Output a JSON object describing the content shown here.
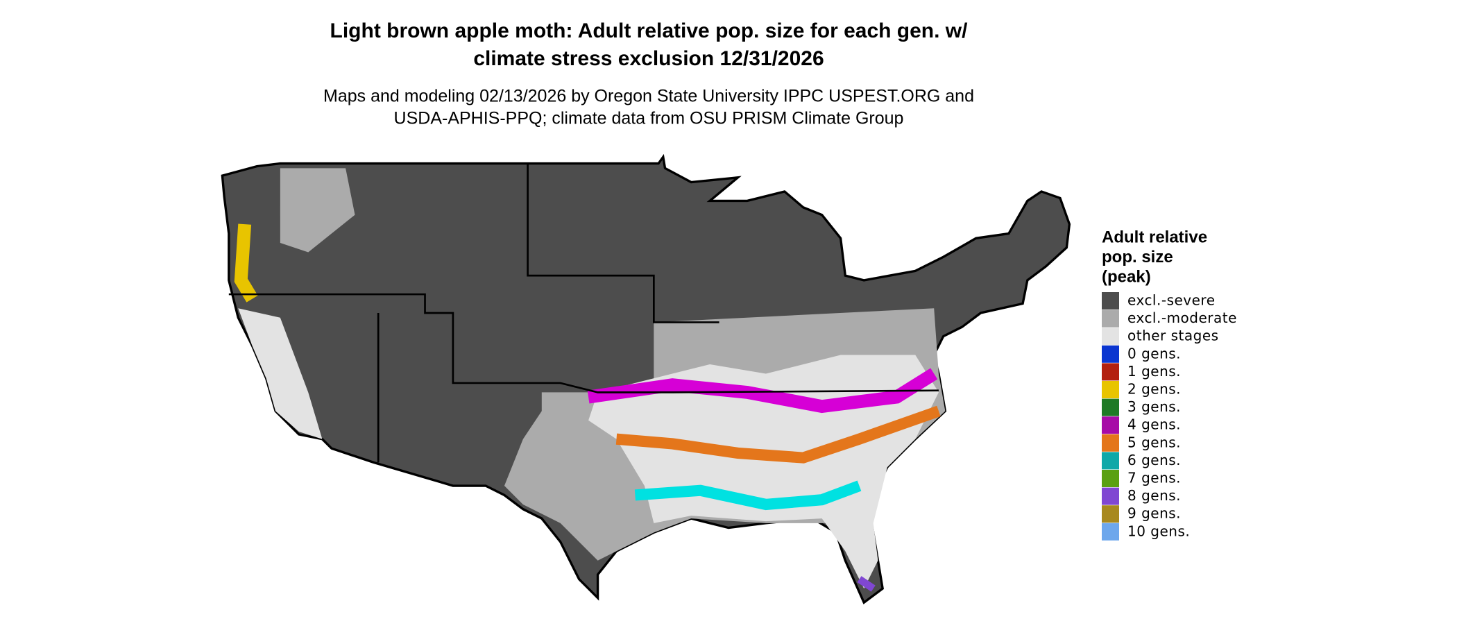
{
  "title": [
    "Light brown apple moth: Adult relative pop. size for each gen. w/",
    "climate stress exclusion 12/31/2026"
  ],
  "subtitle": [
    "Maps and modeling 02/13/2026 by Oregon State University IPPC USPEST.ORG and",
    "USDA-APHIS-PPQ; climate data from OSU PRISM Climate Group"
  ],
  "legend": {
    "title": [
      "Adult relative",
      "pop. size",
      "(peak)"
    ],
    "items": [
      {
        "label": "excl.-severe",
        "color": "#4d4d4d"
      },
      {
        "label": "excl.-moderate",
        "color": "#ababab"
      },
      {
        "label": "other stages",
        "color": "#e3e3e3"
      },
      {
        "label": "0 gens.",
        "color": "#0a35d0"
      },
      {
        "label": "1 gens.",
        "color": "#b3200f"
      },
      {
        "label": "2 gens.",
        "color": "#e8c400"
      },
      {
        "label": "3 gens.",
        "color": "#1e7a25"
      },
      {
        "label": "4 gens.",
        "color": "#a70ba7"
      },
      {
        "label": "5 gens.",
        "color": "#e4761b"
      },
      {
        "label": "6 gens.",
        "color": "#0fa8a8"
      },
      {
        "label": "7 gens.",
        "color": "#5aa012"
      },
      {
        "label": "8 gens.",
        "color": "#8047d2"
      },
      {
        "label": "9 gens.",
        "color": "#a8891e"
      },
      {
        "label": "10 gens.",
        "color": "#6da7ec"
      }
    ]
  }
}
